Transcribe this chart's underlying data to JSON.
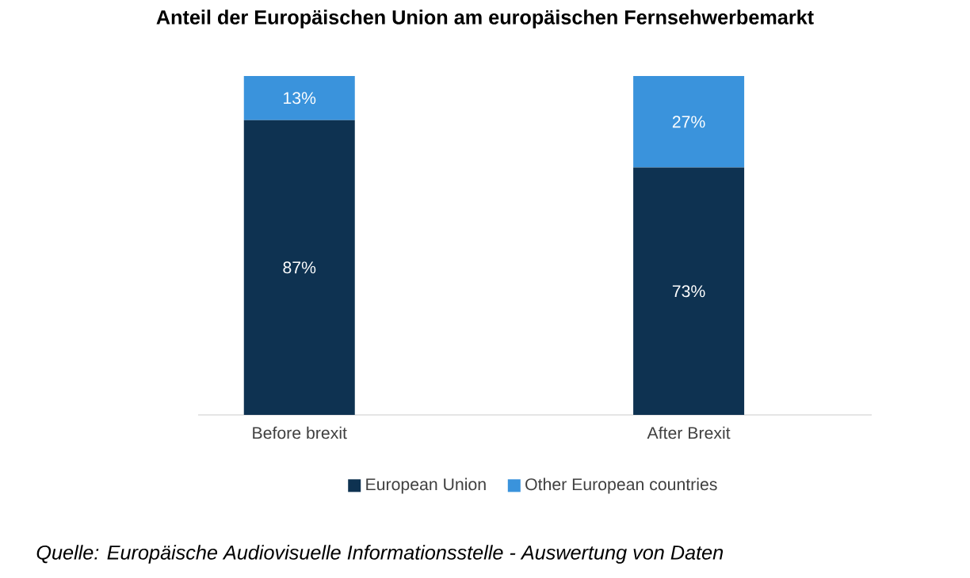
{
  "chart_data": {
    "type": "bar",
    "title": "Anteil der Europäischen Union am europäischen Fernsehwerbemarkt",
    "categories": [
      "Before brexit",
      "After Brexit"
    ],
    "stacked": true,
    "legend": "bottom",
    "series": [
      {
        "name": "European Union",
        "color": "#0e3251",
        "values": [
          87,
          73
        ],
        "value_labels": [
          "87%",
          "73%"
        ]
      },
      {
        "name": "Other European countries",
        "color": "#3a93dc",
        "values": [
          13,
          27
        ],
        "value_labels": [
          "13%",
          "27%"
        ]
      }
    ],
    "annotations": [
      "Quelle: Europäische Audiovisuelle Informationsstelle - Auswertung von Daten"
    ]
  }
}
